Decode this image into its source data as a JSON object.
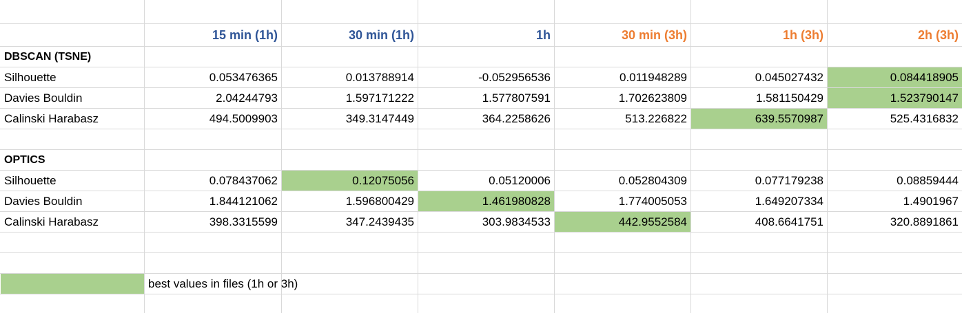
{
  "colors": {
    "highlight": "#a9d08e",
    "blue_header": "#2f5597",
    "orange_header": "#ed7d31",
    "gridline": "#d9d9d9"
  },
  "headers": [
    {
      "label": "15 min (1h)",
      "color": "blue"
    },
    {
      "label": "30 min (1h)",
      "color": "blue"
    },
    {
      "label": "1h",
      "color": "blue"
    },
    {
      "label": "30 min (3h)",
      "color": "orange"
    },
    {
      "label": "1h (3h)",
      "color": "orange"
    },
    {
      "label": "2h (3h)",
      "color": "orange"
    }
  ],
  "sections": [
    {
      "title": "DBSCAN (TSNE)",
      "rows": [
        {
          "metric": "Silhouette",
          "values": [
            "0.053476365",
            "0.013788914",
            "-0.052956536",
            "0.011948289",
            "0.045027432",
            "0.084418905"
          ],
          "best_index": 5
        },
        {
          "metric": "Davies Bouldin",
          "values": [
            "2.04244793",
            "1.597171222",
            "1.577807591",
            "1.702623809",
            "1.581150429",
            "1.523790147"
          ],
          "best_index": 5
        },
        {
          "metric": "Calinski Harabasz",
          "values": [
            "494.5009903",
            "349.3147449",
            "364.2258626",
            "513.226822",
            "639.5570987",
            "525.4316832"
          ],
          "best_index": 4
        }
      ]
    },
    {
      "title": "OPTICS",
      "rows": [
        {
          "metric": "Silhouette",
          "values": [
            "0.078437062",
            "0.12075056",
            "0.05120006",
            "0.052804309",
            "0.077179238",
            "0.08859444"
          ],
          "best_index": 1
        },
        {
          "metric": "Davies Bouldin",
          "values": [
            "1.844121062",
            "1.596800429",
            "1.461980828",
            "1.774005053",
            "1.649207334",
            "1.4901967"
          ],
          "best_index": 2
        },
        {
          "metric": "Calinski Harabasz",
          "values": [
            "398.3315599",
            "347.2439435",
            "303.9834533",
            "442.9552584",
            "408.6641751",
            "320.8891861"
          ],
          "best_index": 3
        }
      ]
    }
  ],
  "legend": {
    "label": "best values in files (1h or 3h)"
  }
}
